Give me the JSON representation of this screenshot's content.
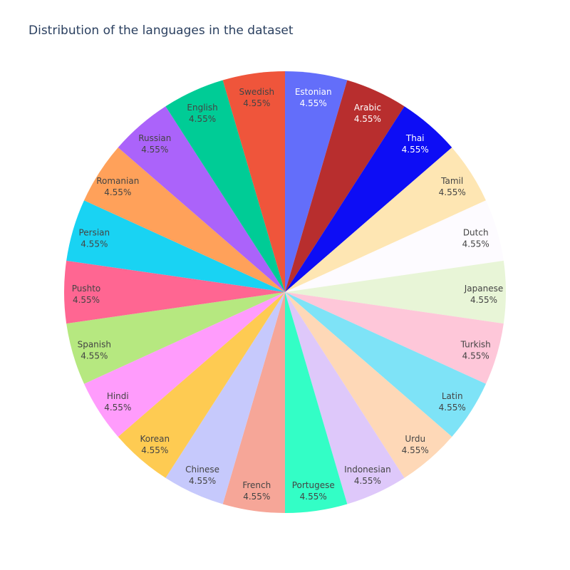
{
  "chart_data": {
    "type": "pie",
    "title": "Distribution of the languages in the dataset",
    "labels": [
      "Estonian",
      "Arabic",
      "Thai",
      "Tamil",
      "Dutch",
      "Japanese",
      "Turkish",
      "Latin",
      "Urdu",
      "Indonesian",
      "Portugese",
      "French",
      "Chinese",
      "Korean",
      "Hindi",
      "Spanish",
      "Pushto",
      "Persian",
      "Romanian",
      "Russian",
      "English",
      "Swedish"
    ],
    "percent_labels": [
      "4.55%",
      "4.55%",
      "4.55%",
      "4.55%",
      "4.55%",
      "4.55%",
      "4.55%",
      "4.55%",
      "4.55%",
      "4.55%",
      "4.55%",
      "4.55%",
      "4.55%",
      "4.55%",
      "4.55%",
      "4.55%",
      "4.55%",
      "4.55%",
      "4.55%",
      "4.55%",
      "4.55%",
      "4.55%"
    ],
    "values": [
      4.55,
      4.55,
      4.55,
      4.55,
      4.55,
      4.55,
      4.55,
      4.55,
      4.55,
      4.55,
      4.55,
      4.55,
      4.55,
      4.55,
      4.55,
      4.55,
      4.55,
      4.55,
      4.55,
      4.55,
      4.55,
      4.55
    ],
    "colors": [
      "#636efa",
      "#b82e2e",
      "#0d0df5",
      "#fee6b3",
      "#fdfbff",
      "#e8f5d7",
      "#fec7d9",
      "#7ee3f7",
      "#fed8b7",
      "#dec8fa",
      "#33fec6",
      "#f6a698",
      "#c6c9fc",
      "#fecb52",
      "#ff9cfc",
      "#b6e880",
      "#ff6692",
      "#19d3f3",
      "#ffa15a",
      "#ab63fa",
      "#00cc96",
      "#ef553b"
    ],
    "text_colors": [
      "#ffffff",
      "#ffffff",
      "#ffffff",
      "#444444",
      "#444444",
      "#444444",
      "#444444",
      "#444444",
      "#444444",
      "#444444",
      "#444444",
      "#444444",
      "#444444",
      "#444444",
      "#444444",
      "#444444",
      "#444444",
      "#444444",
      "#444444",
      "#444444",
      "#444444",
      "#444444"
    ],
    "direction": "clockwise",
    "start": "top",
    "legend": "none"
  }
}
